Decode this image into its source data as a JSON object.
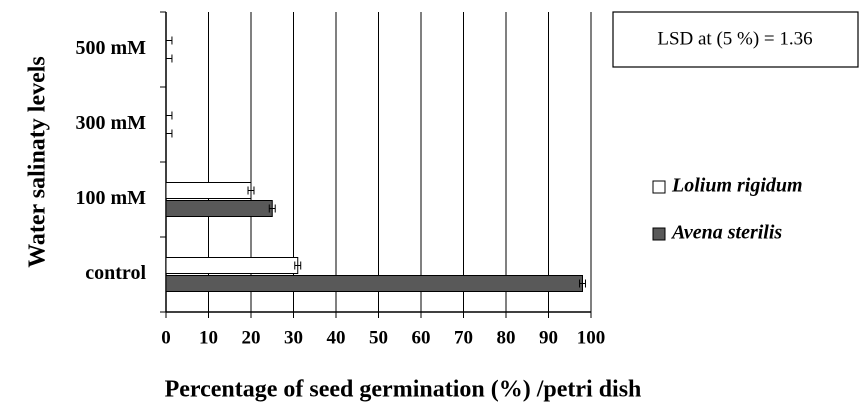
{
  "chart_data": {
    "type": "barh",
    "xlabel": "Percentage of seed germination (%) /petri dish",
    "ylabel": "Water salinaty levels",
    "annotation": "LSD at (5 %) = 1.36",
    "categories": [
      "control",
      "100 mM",
      "300 mM",
      "500 mM"
    ],
    "series": [
      {
        "name": "Lolium rigidum",
        "color": "#ffffff",
        "values": [
          31,
          20,
          0,
          0
        ],
        "errors": [
          0.7,
          0.7,
          0.7,
          0.7
        ]
      },
      {
        "name": "Avena sterilis",
        "color": "#595959",
        "values": [
          98,
          25,
          0,
          0
        ],
        "errors": [
          0.7,
          0.7,
          0.7,
          0.7
        ]
      }
    ],
    "xlim": [
      0,
      100
    ],
    "xticks": [
      0,
      10,
      20,
      30,
      40,
      50,
      60,
      70,
      80,
      90,
      100
    ],
    "grid": true
  }
}
